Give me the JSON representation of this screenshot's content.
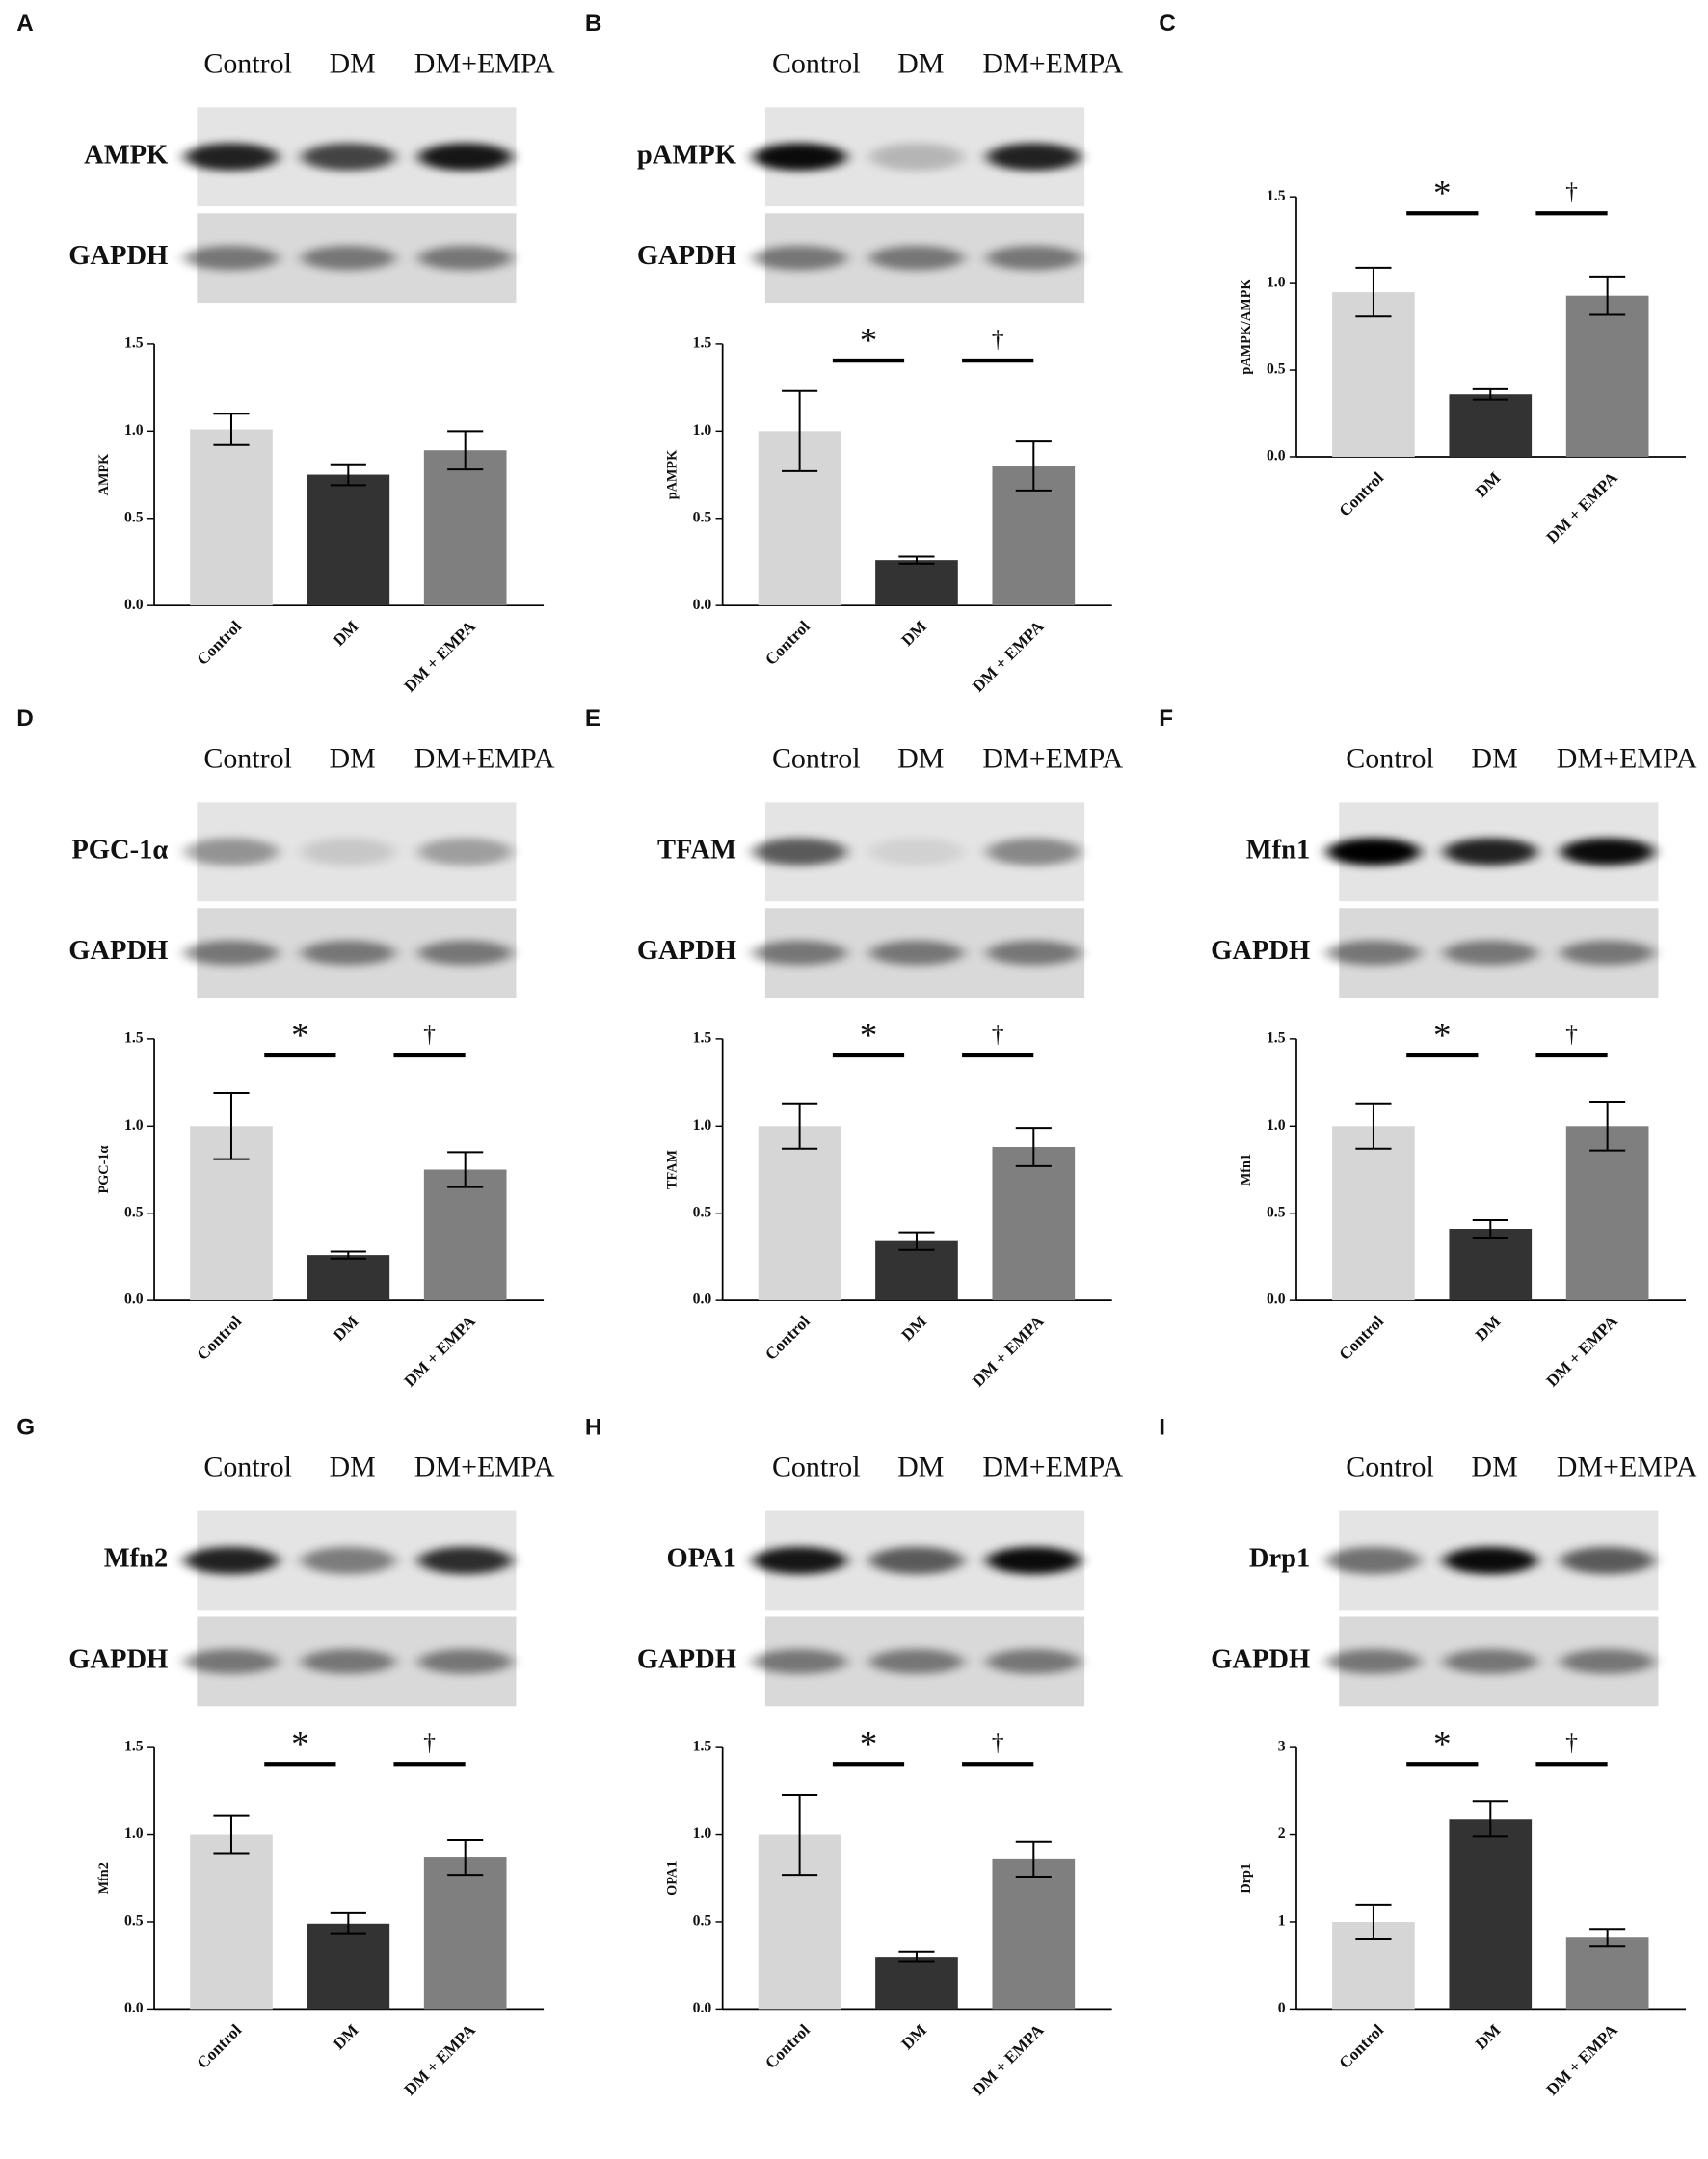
{
  "chart_data": [
    {
      "type": "bar",
      "panel": "A",
      "lanes": [
        "Control",
        "DM",
        "DM+EMPA"
      ],
      "blot_labels": [
        "AMPK",
        "GAPDH"
      ],
      "ylabel": "AMPK",
      "categories": [
        "Control",
        "DM",
        "DM + EMPA"
      ],
      "values": [
        1.01,
        0.75,
        0.89
      ],
      "errors": [
        0.09,
        0.06,
        0.11
      ],
      "colors": [
        "#d6d6d6",
        "#333333",
        "#7f7f7f"
      ],
      "ylim": [
        0,
        1.5
      ],
      "yticks": [
        {
          "value": 0,
          "label": "0.0"
        },
        {
          "value": 0.5,
          "label": "0.5"
        },
        {
          "value": 1,
          "label": "1.0"
        },
        {
          "value": 1.5,
          "label": "1.5"
        }
      ],
      "significance": []
    },
    {
      "type": "bar",
      "panel": "B",
      "lanes": [
        "Control",
        "DM",
        "DM+EMPA"
      ],
      "blot_labels": [
        "pAMPK",
        "GAPDH"
      ],
      "ylabel": "pAMPK",
      "categories": [
        "Control",
        "DM",
        "DM + EMPA"
      ],
      "values": [
        1.0,
        0.26,
        0.8
      ],
      "errors": [
        0.23,
        0.02,
        0.14
      ],
      "colors": [
        "#d6d6d6",
        "#333333",
        "#7f7f7f"
      ],
      "ylim": [
        0,
        1.5
      ],
      "yticks": [
        {
          "value": 0,
          "label": "0.0"
        },
        {
          "value": 0.5,
          "label": "0.5"
        },
        {
          "value": 1,
          "label": "1.0"
        },
        {
          "value": 1.5,
          "label": "1.5"
        }
      ],
      "significance": [
        "*",
        "†"
      ]
    },
    {
      "type": "bar",
      "panel": "C",
      "ylabel": "pAMPK/AMPK",
      "categories": [
        "Control",
        "DM",
        "DM + EMPA"
      ],
      "values": [
        0.95,
        0.36,
        0.93
      ],
      "errors": [
        0.14,
        0.03,
        0.11
      ],
      "colors": [
        "#d6d6d6",
        "#333333",
        "#7f7f7f"
      ],
      "ylim": [
        0,
        1.5
      ],
      "yticks": [
        {
          "value": 0,
          "label": "0.0"
        },
        {
          "value": 0.5,
          "label": "0.5"
        },
        {
          "value": 1,
          "label": "1.0"
        },
        {
          "value": 1.5,
          "label": "1.5"
        }
      ],
      "significance": [
        "*",
        "†"
      ]
    },
    {
      "type": "bar",
      "panel": "D",
      "lanes": [
        "Control",
        "DM",
        "DM+EMPA"
      ],
      "blot_labels": [
        "PGC-1α",
        "GAPDH"
      ],
      "ylabel": "PGC-1α",
      "categories": [
        "Control",
        "DM",
        "DM + EMPA"
      ],
      "values": [
        1.0,
        0.26,
        0.75
      ],
      "errors": [
        0.19,
        0.02,
        0.1
      ],
      "colors": [
        "#d6d6d6",
        "#333333",
        "#7f7f7f"
      ],
      "ylim": [
        0,
        1.5
      ],
      "yticks": [
        {
          "value": 0,
          "label": "0.0"
        },
        {
          "value": 0.5,
          "label": "0.5"
        },
        {
          "value": 1,
          "label": "1.0"
        },
        {
          "value": 1.5,
          "label": "1.5"
        }
      ],
      "significance": [
        "*",
        "†"
      ]
    },
    {
      "type": "bar",
      "panel": "E",
      "lanes": [
        "Control",
        "DM",
        "DM+EMPA"
      ],
      "blot_labels": [
        "TFAM",
        "GAPDH"
      ],
      "ylabel": "TFAM",
      "categories": [
        "Control",
        "DM",
        "DM + EMPA"
      ],
      "values": [
        1.0,
        0.34,
        0.88
      ],
      "errors": [
        0.13,
        0.05,
        0.11
      ],
      "colors": [
        "#d6d6d6",
        "#333333",
        "#7f7f7f"
      ],
      "ylim": [
        0,
        1.5
      ],
      "yticks": [
        {
          "value": 0,
          "label": "0.0"
        },
        {
          "value": 0.5,
          "label": "0.5"
        },
        {
          "value": 1,
          "label": "1.0"
        },
        {
          "value": 1.5,
          "label": "1.5"
        }
      ],
      "significance": [
        "*",
        "†"
      ]
    },
    {
      "type": "bar",
      "panel": "F",
      "lanes": [
        "Control",
        "DM",
        "DM+EMPA"
      ],
      "blot_labels": [
        "Mfn1",
        "GAPDH"
      ],
      "ylabel": "Mfn1",
      "categories": [
        "Control",
        "DM",
        "DM + EMPA"
      ],
      "values": [
        1.0,
        0.41,
        1.0
      ],
      "errors": [
        0.13,
        0.05,
        0.14
      ],
      "colors": [
        "#d6d6d6",
        "#333333",
        "#7f7f7f"
      ],
      "ylim": [
        0,
        1.5
      ],
      "yticks": [
        {
          "value": 0,
          "label": "0.0"
        },
        {
          "value": 0.5,
          "label": "0.5"
        },
        {
          "value": 1,
          "label": "1.0"
        },
        {
          "value": 1.5,
          "label": "1.5"
        }
      ],
      "significance": [
        "*",
        "†"
      ]
    },
    {
      "type": "bar",
      "panel": "G",
      "lanes": [
        "Control",
        "DM",
        "DM+EMPA"
      ],
      "blot_labels": [
        "Mfn2",
        "GAPDH"
      ],
      "ylabel": "Mfn2",
      "categories": [
        "Control",
        "DM",
        "DM + EMPA"
      ],
      "values": [
        1.0,
        0.49,
        0.87
      ],
      "errors": [
        0.11,
        0.06,
        0.1
      ],
      "colors": [
        "#d6d6d6",
        "#333333",
        "#7f7f7f"
      ],
      "ylim": [
        0,
        1.5
      ],
      "yticks": [
        {
          "value": 0,
          "label": "0.0"
        },
        {
          "value": 0.5,
          "label": "0.5"
        },
        {
          "value": 1,
          "label": "1.0"
        },
        {
          "value": 1.5,
          "label": "1.5"
        }
      ],
      "significance": [
        "*",
        "†"
      ]
    },
    {
      "type": "bar",
      "panel": "H",
      "lanes": [
        "Control",
        "DM",
        "DM+EMPA"
      ],
      "blot_labels": [
        "OPA1",
        "GAPDH"
      ],
      "ylabel": "OPA1",
      "categories": [
        "Control",
        "DM",
        "DM + EMPA"
      ],
      "values": [
        1.0,
        0.3,
        0.86
      ],
      "errors": [
        0.23,
        0.03,
        0.1
      ],
      "colors": [
        "#d6d6d6",
        "#333333",
        "#7f7f7f"
      ],
      "ylim": [
        0,
        1.5
      ],
      "yticks": [
        {
          "value": 0,
          "label": "0.0"
        },
        {
          "value": 0.5,
          "label": "0.5"
        },
        {
          "value": 1,
          "label": "1.0"
        },
        {
          "value": 1.5,
          "label": "1.5"
        }
      ],
      "significance": [
        "*",
        "†"
      ]
    },
    {
      "type": "bar",
      "panel": "I",
      "lanes": [
        "Control",
        "DM",
        "DM+EMPA"
      ],
      "blot_labels": [
        "Drp1",
        "GAPDH"
      ],
      "ylabel": "Drp1",
      "categories": [
        "Control",
        "DM",
        "DM + EMPA"
      ],
      "values": [
        1.0,
        2.18,
        0.82
      ],
      "errors": [
        0.2,
        0.2,
        0.1
      ],
      "colors": [
        "#d6d6d6",
        "#333333",
        "#7f7f7f"
      ],
      "ylim": [
        0,
        3
      ],
      "yticks": [
        0,
        1,
        2,
        3
      ],
      "significance": [
        "*",
        "†"
      ]
    }
  ]
}
